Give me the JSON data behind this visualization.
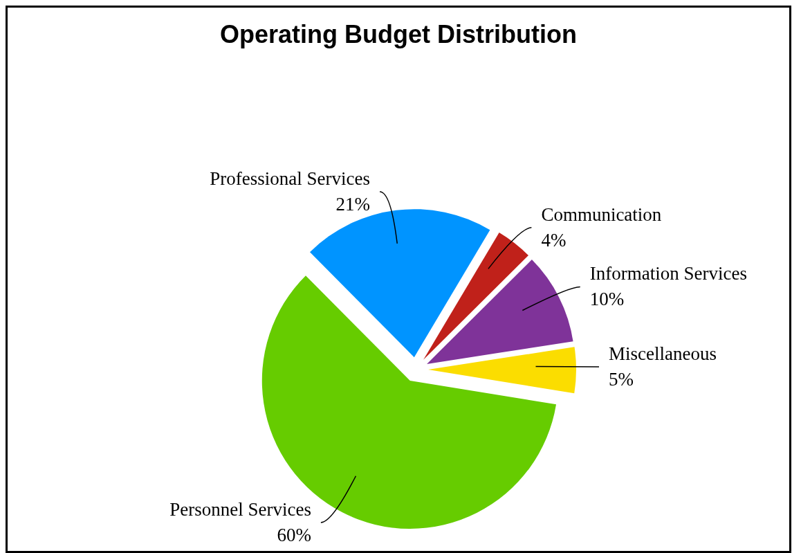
{
  "chart_data": {
    "type": "pie",
    "title": "Operating Budget Distribution",
    "categories": [
      "Professional Services",
      "Communication",
      "Information Services",
      "Miscellaneous",
      "Personnel Services"
    ],
    "values": [
      21,
      4,
      10,
      5,
      60
    ],
    "value_labels": [
      "21%",
      "4%",
      "10%",
      "5%",
      "60%"
    ],
    "colors": [
      "#0094ff",
      "#c0211a",
      "#7f3399",
      "#fbdd00",
      "#66cc00"
    ],
    "legend": false
  }
}
